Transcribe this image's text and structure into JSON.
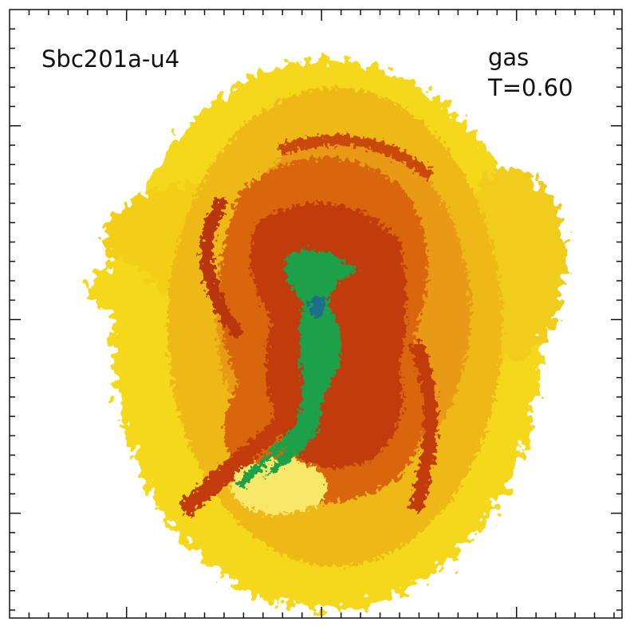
{
  "panel": {
    "label": "Sbc201a-u4",
    "component": "gas",
    "time": "T=0.60"
  }
}
